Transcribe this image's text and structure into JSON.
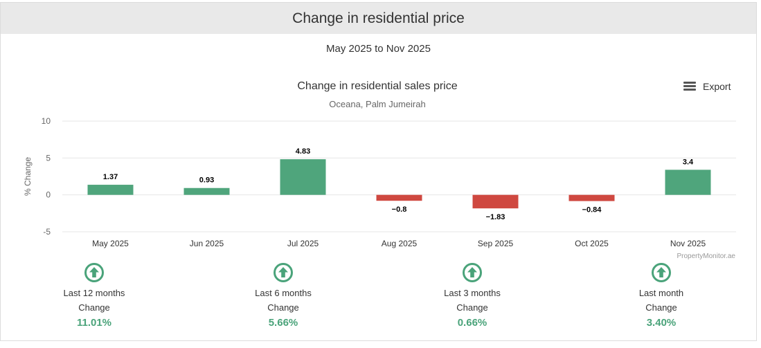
{
  "header": {
    "title": "Change in residential price"
  },
  "period": "May 2025 to Nov 2025",
  "export": {
    "label": "Export",
    "icon": "menu-icon"
  },
  "colors": {
    "positive": "#4fa57c",
    "negative": "#cf4840",
    "value_text": "#4aa37a"
  },
  "chart_data": {
    "type": "bar",
    "title": "Change in residential sales price",
    "subtitle": "Oceana, Palm Jumeirah",
    "ylabel": "% Change",
    "xlabel": "",
    "ylim": [
      -5,
      10
    ],
    "yticks": [
      "10",
      "5",
      "0",
      "-5"
    ],
    "categories": [
      "May 2025",
      "Jun 2025",
      "Jul 2025",
      "Aug 2025",
      "Sep 2025",
      "Oct 2025",
      "Nov 2025"
    ],
    "values": [
      1.37,
      0.93,
      4.83,
      -0.8,
      -1.83,
      -0.84,
      3.4
    ],
    "data_labels": [
      "1.37",
      "0.93",
      "4.83",
      "−0.8",
      "−1.83",
      "−0.84",
      "3.4"
    ],
    "grid": true,
    "credit": "PropertyMonitor.ae"
  },
  "summary": [
    {
      "period": "Last 12 months",
      "label": "Change",
      "value": "11.01%",
      "icon": "arrow-up-circle-icon"
    },
    {
      "period": "Last 6 months",
      "label": "Change",
      "value": "5.66%",
      "icon": "arrow-up-circle-icon"
    },
    {
      "period": "Last 3 months",
      "label": "Change",
      "value": "0.66%",
      "icon": "arrow-up-circle-icon"
    },
    {
      "period": "Last month",
      "label": "Change",
      "value": "3.40%",
      "icon": "arrow-up-circle-icon"
    }
  ]
}
